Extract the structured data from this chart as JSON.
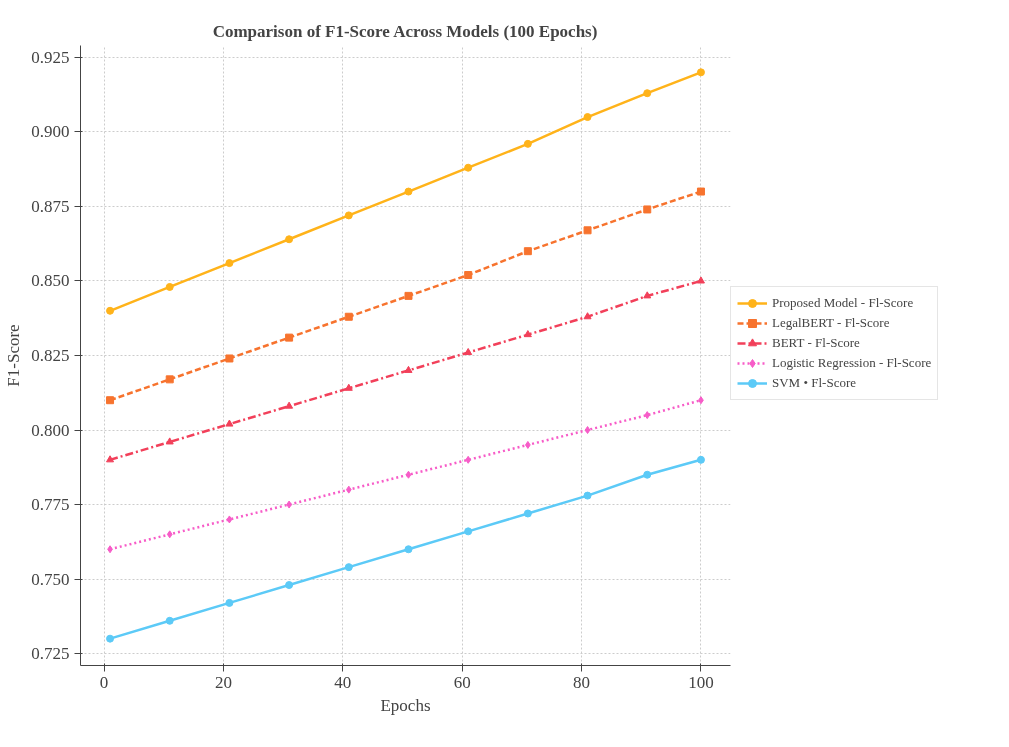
{
  "chart_data": {
    "type": "line",
    "title": "Comparison of F1-Score Across Models (100 Epochs)",
    "xlabel": "Epochs",
    "ylabel": "F1-Score",
    "x": [
      1,
      11,
      21,
      31,
      41,
      51,
      61,
      71,
      81,
      91,
      100
    ],
    "xlim": [
      -3.95,
      104.95
    ],
    "xticks": [
      0,
      20,
      40,
      60,
      80,
      100
    ],
    "ylim": [
      0.721,
      0.929
    ],
    "yticks": [
      0.725,
      {
        "value": 0.75,
        "label": "0.750"
      },
      0.775,
      {
        "value": 0.8,
        "label": "0.800"
      },
      0.825,
      {
        "value": 0.85,
        "label": "0.850"
      },
      0.875,
      {
        "value": 0.9,
        "label": "0.900"
      },
      0.925
    ],
    "grid": true,
    "legend": "right",
    "series": [
      {
        "name": "Proposed Model - Fl-Score",
        "color": "#ffb31a",
        "marker": "circle",
        "line_style": "solid",
        "values": [
          0.84,
          0.848,
          0.856,
          0.864,
          0.872,
          0.88,
          0.888,
          0.896,
          0.905,
          0.913,
          0.92
        ]
      },
      {
        "name": "LegalBERT - Fl-Score",
        "color": "#f7732e",
        "marker": "square",
        "line_style": "dashed",
        "values": [
          0.81,
          0.817,
          0.824,
          0.831,
          0.838,
          0.845,
          0.852,
          0.86,
          0.867,
          0.874,
          0.88
        ]
      },
      {
        "name": "BERT - Fl-Score",
        "color": "#f2405a",
        "marker": "triangle",
        "line_style": "dashdot",
        "values": [
          0.79,
          0.796,
          0.802,
          0.808,
          0.814,
          0.82,
          0.826,
          0.832,
          0.838,
          0.845,
          0.85
        ]
      },
      {
        "name": "Logistic Regression - Fl-Score",
        "color": "#f75cc8",
        "marker": "diamond",
        "line_style": "dotted",
        "values": [
          0.76,
          0.765,
          0.77,
          0.775,
          0.78,
          0.785,
          0.79,
          0.795,
          0.8,
          0.805,
          0.81
        ]
      },
      {
        "name": "SVM • Fl-Score",
        "color": "#5ccaf7",
        "marker": "circle",
        "line_style": "solid",
        "values": [
          0.73,
          0.736,
          0.742,
          0.748,
          0.754,
          0.76,
          0.766,
          0.772,
          0.778,
          0.785,
          0.79
        ]
      }
    ]
  }
}
